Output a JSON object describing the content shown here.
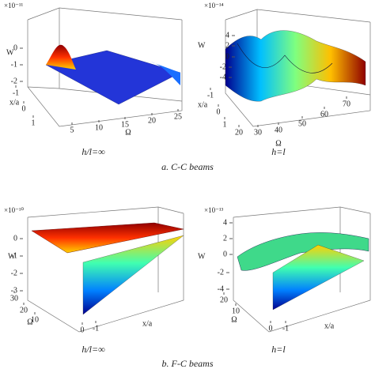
{
  "figure": {
    "panels": [
      {
        "exponent": "×10⁻¹¹",
        "z_label": "W",
        "z_ticks": [
          0,
          -1,
          -2
        ],
        "x_label": "x/a",
        "x_ticks": [
          -1,
          0,
          1
        ],
        "omega_label": "Ω",
        "omega_ticks": [
          5,
          10,
          15,
          20,
          25
        ],
        "caption": "h/l=∞"
      },
      {
        "exponent": "×10⁻¹⁴",
        "z_label": "W",
        "z_ticks": [
          4,
          2,
          0,
          -2,
          -4
        ],
        "x_label": "x/a",
        "x_ticks": [
          -1,
          0,
          1
        ],
        "omega_label": "Ω",
        "omega_ticks": [
          20,
          30,
          40,
          50,
          60,
          70
        ],
        "caption": "h=l"
      },
      {
        "exponent": "×10⁻¹⁰",
        "z_label": "W",
        "z_ticks": [
          0,
          -1,
          -2,
          -3
        ],
        "x_label": "x/a",
        "x_ticks": [
          -1
        ],
        "omega_label": "Ω",
        "omega_ticks": [
          30,
          20,
          10,
          0
        ],
        "caption": "h/l=∞"
      },
      {
        "exponent": "×10⁻¹³",
        "z_label": "W",
        "z_ticks": [
          4,
          2,
          0,
          -2,
          -4
        ],
        "x_label": "x/a",
        "x_ticks": [
          -1
        ],
        "omega_label": "Ω",
        "omega_ticks": [
          20,
          10,
          0
        ],
        "caption": "h=l"
      }
    ],
    "group_captions": [
      "a. C-C beams",
      "b. F-C beams"
    ]
  }
}
